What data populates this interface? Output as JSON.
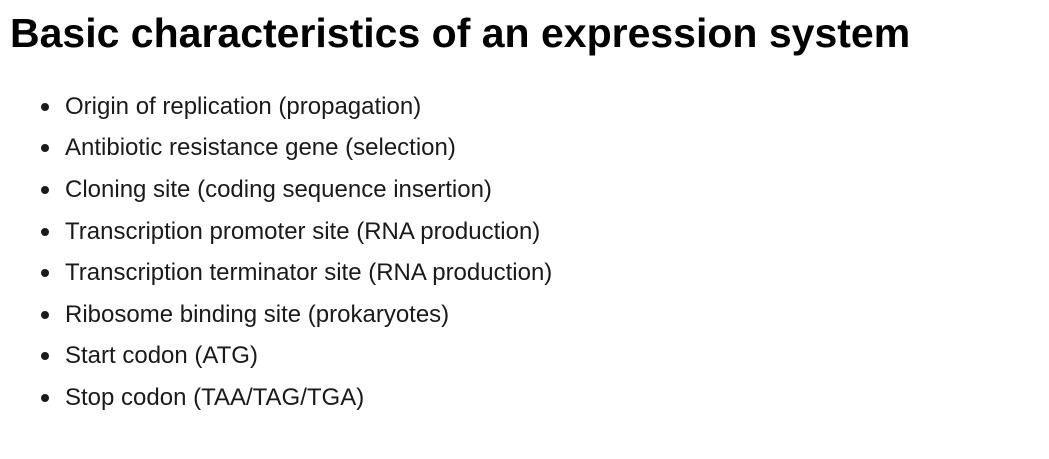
{
  "title": "Basic characteristics of an expression system",
  "items": [
    "Origin of replication (propagation)",
    "Antibiotic resistance gene (selection)",
    "Cloning site (coding sequence insertion)",
    "Transcription promoter site (RNA production)",
    "Transcription terminator site (RNA production)",
    "Ribosome binding site (prokaryotes)",
    "Start codon (ATG)",
    "Stop codon (TAA/TAG/TGA)"
  ]
}
